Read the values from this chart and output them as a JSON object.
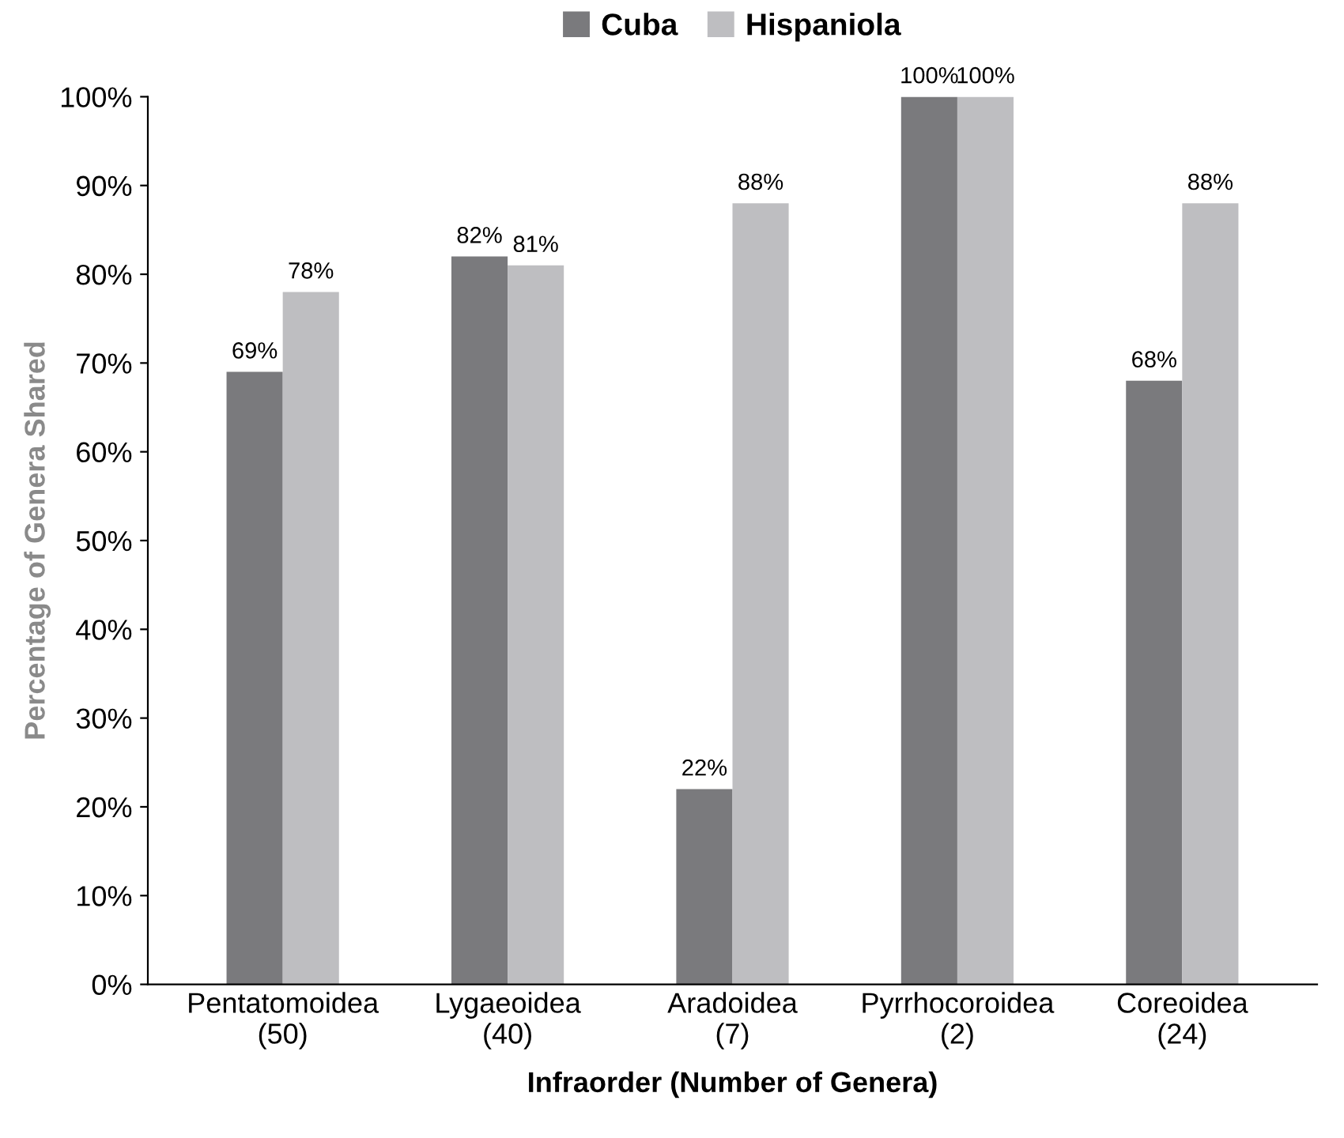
{
  "chart_data": {
    "type": "bar",
    "categories": [
      "Pentatomoidea\n(50)",
      "Lygaeoidea\n(40)",
      "Aradoidea\n(7)",
      "Pyrrhocoroidea\n(2)",
      "Coreoidea\n(24)"
    ],
    "series": [
      {
        "name": "Cuba",
        "color": "#7a7a7d",
        "values": [
          69,
          82,
          22,
          100,
          68
        ],
        "value_labels": [
          "69%",
          "82%",
          "22%",
          "100%",
          "68%"
        ]
      },
      {
        "name": "Hispaniola",
        "color": "#bebec1",
        "values": [
          78,
          81,
          88,
          100,
          88
        ],
        "value_labels": [
          "78%",
          "81%",
          "88%",
          "100%",
          "88%"
        ]
      }
    ],
    "xlabel": "Infraorder (Number of Genera)",
    "ylabel": "Percentage of Genera Shared",
    "ylim": [
      0,
      100
    ],
    "yticks": [
      {
        "value": 0,
        "label": "0%"
      },
      {
        "value": 10,
        "label": "10%"
      },
      {
        "value": 20,
        "label": "20%"
      },
      {
        "value": 30,
        "label": "30%"
      },
      {
        "value": 40,
        "label": "40%"
      },
      {
        "value": 50,
        "label": "50%"
      },
      {
        "value": 60,
        "label": "60%"
      },
      {
        "value": 70,
        "label": "70%"
      },
      {
        "value": 80,
        "label": "80%"
      },
      {
        "value": 90,
        "label": "90%"
      },
      {
        "value": 100,
        "label": "100%"
      }
    ],
    "grid": false,
    "legend": "top"
  }
}
